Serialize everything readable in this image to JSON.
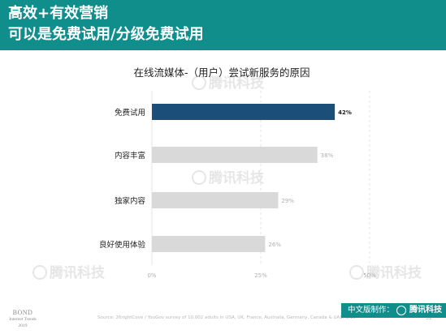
{
  "header": {
    "line1": "高效+有效营销",
    "line2": "可以是免费试用/分级免费试用"
  },
  "chart_data": {
    "type": "bar",
    "orientation": "horizontal",
    "title": "在线流媒体-（用户）尝试新服务的原因",
    "categories": [
      "免费试用",
      "内容丰富",
      "独家内容",
      "良好使用体验"
    ],
    "values": [
      42,
      38,
      29,
      26
    ],
    "value_labels": [
      "42%",
      "38%",
      "29%",
      "26%"
    ],
    "xlim": [
      0,
      50
    ],
    "x_ticks": [
      0,
      25,
      50
    ],
    "x_tick_labels": [
      "0%",
      "25%",
      "50%"
    ],
    "grid": true,
    "colors": {
      "highlight": "#1b4f7a",
      "default": "#d9d9d9"
    }
  },
  "watermark": {
    "text": "腾讯科技"
  },
  "footer": {
    "source": "Source: 26rightCove / YouGov survey of 10,002 adults in USA, UK, France, Australia, Germany, Canada & UAE, 3/19.",
    "page_number": "31",
    "bond_line1": "BOND",
    "bond_line2": "Internet Trends",
    "bond_line3": "2019",
    "translation_label": "中文版制作：",
    "translation_logo": "腾讯科技"
  },
  "colors": {
    "header_bg": "#0f8e8c",
    "accent": "#1b4f7a"
  }
}
